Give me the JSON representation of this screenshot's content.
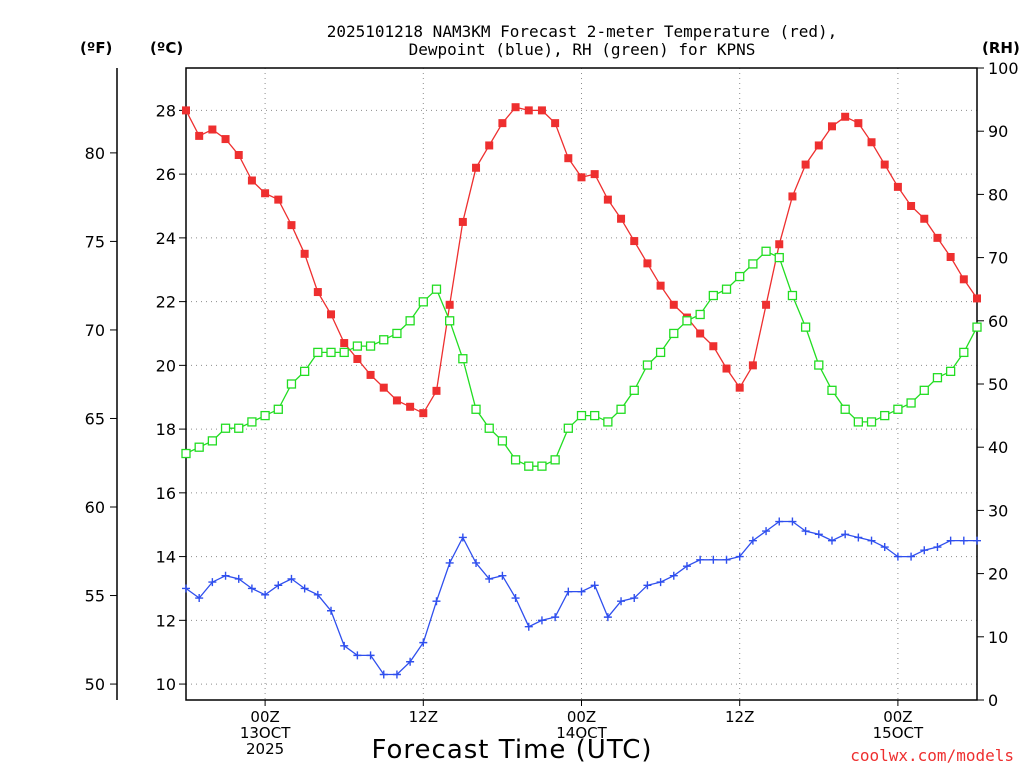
{
  "chart_data": {
    "type": "line",
    "title_line1": "2025101218 NAM3KM Forecast 2-meter Temperature (red),",
    "title_line2": "Dewpoint (blue), RH (green) for KPNS",
    "xlabel": "Forecast Time (UTC)",
    "unit_f": "(ºF)",
    "unit_c": "(ºC)",
    "unit_rh": "(RH)",
    "credit": "coolwx.com/models",
    "xlim": [
      0,
      60
    ],
    "ylim_c": [
      9.5,
      29.33
    ],
    "ylim_rh": [
      0,
      100
    ],
    "c_ticks": [
      "10",
      "12",
      "14",
      "16",
      "18",
      "20",
      "22",
      "24",
      "26",
      "28"
    ],
    "f_ticks": [
      "50",
      "55",
      "60",
      "65",
      "70",
      "75",
      "80"
    ],
    "rh_ticks": [
      "0",
      "10",
      "20",
      "30",
      "40",
      "50",
      "60",
      "70",
      "80",
      "90",
      "100"
    ],
    "x_ticks": [
      {
        "hour": 6,
        "lines": [
          "00Z",
          "13OCT",
          "2025"
        ]
      },
      {
        "hour": 18,
        "lines": [
          "12Z",
          "",
          ""
        ]
      },
      {
        "hour": 30,
        "lines": [
          "00Z",
          "14OCT",
          ""
        ]
      },
      {
        "hour": 42,
        "lines": [
          "12Z",
          "",
          ""
        ]
      },
      {
        "hour": 54,
        "lines": [
          "00Z",
          "15OCT",
          ""
        ]
      }
    ],
    "series": [
      {
        "name": "Temperature",
        "units": "C",
        "color": "#ee2f2f",
        "marker": "filled-square",
        "values": [
          28.0,
          27.2,
          27.4,
          27.1,
          26.6,
          25.8,
          25.4,
          25.2,
          24.4,
          23.5,
          22.3,
          21.6,
          20.7,
          20.2,
          19.7,
          19.3,
          18.9,
          18.7,
          18.5,
          19.2,
          21.9,
          24.5,
          26.2,
          26.9,
          27.6,
          28.1,
          28.0,
          28.0,
          27.6,
          26.5,
          25.9,
          26.0,
          25.2,
          24.6,
          23.9,
          23.2,
          22.5,
          21.9,
          21.5,
          21.0,
          20.6,
          19.9,
          19.3,
          20.0,
          21.9,
          23.8,
          25.3,
          26.3,
          26.9,
          27.5,
          27.8,
          27.6,
          27.0,
          26.3,
          25.6,
          25.0,
          24.6,
          24.0,
          23.4,
          22.7,
          22.1
        ]
      },
      {
        "name": "Dewpoint",
        "units": "C",
        "color": "#2f4fee",
        "marker": "plus",
        "values": [
          13.0,
          12.7,
          13.2,
          13.4,
          13.3,
          13.0,
          12.8,
          13.1,
          13.3,
          13.0,
          12.8,
          12.3,
          11.2,
          10.9,
          10.9,
          10.3,
          10.3,
          10.7,
          11.3,
          12.6,
          13.8,
          14.6,
          13.8,
          13.3,
          13.4,
          12.7,
          11.8,
          12.0,
          12.1,
          12.9,
          12.9,
          13.1,
          12.1,
          12.6,
          12.7,
          13.1,
          13.2,
          13.4,
          13.7,
          13.9,
          13.9,
          13.9,
          14.0,
          14.5,
          14.8,
          15.1,
          15.1,
          14.8,
          14.7,
          14.5,
          14.7,
          14.6,
          14.5,
          14.3,
          14.0,
          14.0,
          14.2,
          14.3,
          14.5,
          14.5,
          14.5
        ]
      },
      {
        "name": "RH",
        "units": "%",
        "color": "#22dd22",
        "marker": "open-square",
        "values": [
          39,
          40,
          41,
          43,
          43,
          44,
          45,
          46,
          50,
          52,
          55,
          55,
          55,
          56,
          56,
          57,
          58,
          60,
          63,
          65,
          60,
          54,
          46,
          43,
          41,
          38,
          37,
          37,
          38,
          43,
          45,
          45,
          44,
          46,
          49,
          53,
          55,
          58,
          60,
          61,
          64,
          65,
          67,
          69,
          71,
          70,
          64,
          59,
          53,
          49,
          46,
          44,
          44,
          45,
          46,
          47,
          49,
          51,
          52,
          55,
          59
        ]
      }
    ]
  }
}
